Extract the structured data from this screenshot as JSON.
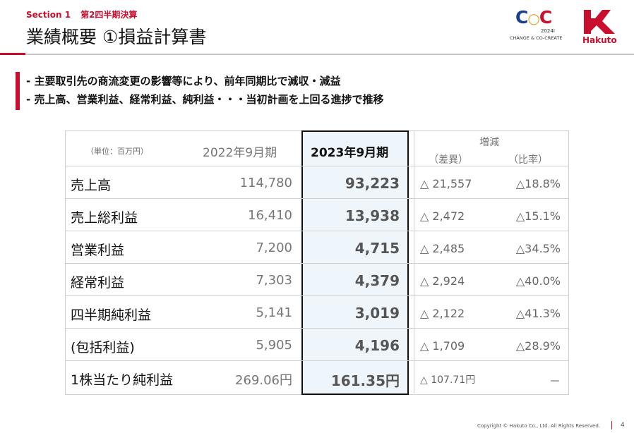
{
  "header": {
    "section": "Section 1",
    "subsection": "第2四半期決算",
    "title": "業績概要 ①損益計算書"
  },
  "logos": {
    "co_mark": "CoC",
    "year": "2024I",
    "tagline": "CHANGE & CO-CREATE",
    "company": "Hakuto"
  },
  "bullets": [
    "- 主要取引先の商流変更の影響等により、前年同期比で減収・減益",
    "- 売上高、営業利益、経常利益、純利益・・・当初計画を上回る進捗で推移"
  ],
  "table": {
    "unit": "（単位：百万円）",
    "col_prev": "2022年9月期",
    "col_cur": "2023年9月期",
    "col_change": "増減",
    "col_diff": "（差異）",
    "col_ratio": "（比率）",
    "rows": [
      {
        "label": "売上高",
        "prev": "114,780",
        "cur": "93,223",
        "diff": "△ 21,557",
        "ratio": "△18.8%"
      },
      {
        "label": "売上総利益",
        "prev": "16,410",
        "cur": "13,938",
        "diff": "△ 2,472",
        "ratio": "△15.1%"
      },
      {
        "label": "営業利益",
        "prev": "7,200",
        "cur": "4,715",
        "diff": "△ 2,485",
        "ratio": "△34.5%"
      },
      {
        "label": "経常利益",
        "prev": "7,303",
        "cur": "4,379",
        "diff": "△ 2,924",
        "ratio": "△40.0%"
      },
      {
        "label": "四半期純利益",
        "prev": "5,141",
        "cur": "3,019",
        "diff": "△ 2,122",
        "ratio": "△41.3%"
      },
      {
        "label": "(包括利益)",
        "prev": "5,905",
        "cur": "4,196",
        "diff": "△ 1,709",
        "ratio": "△28.9%"
      },
      {
        "label": "1株当たり純利益",
        "prev": "269.06円",
        "cur": "161.35円",
        "diff": "△ 107.71円",
        "ratio": "－"
      }
    ]
  },
  "footer": {
    "copyright": "Copyright © Hakuto Co., Ltd. All Rights Reserved.",
    "page": "4"
  },
  "colors": {
    "brand_red": "#c8102e",
    "highlight": "#eef6fc"
  }
}
